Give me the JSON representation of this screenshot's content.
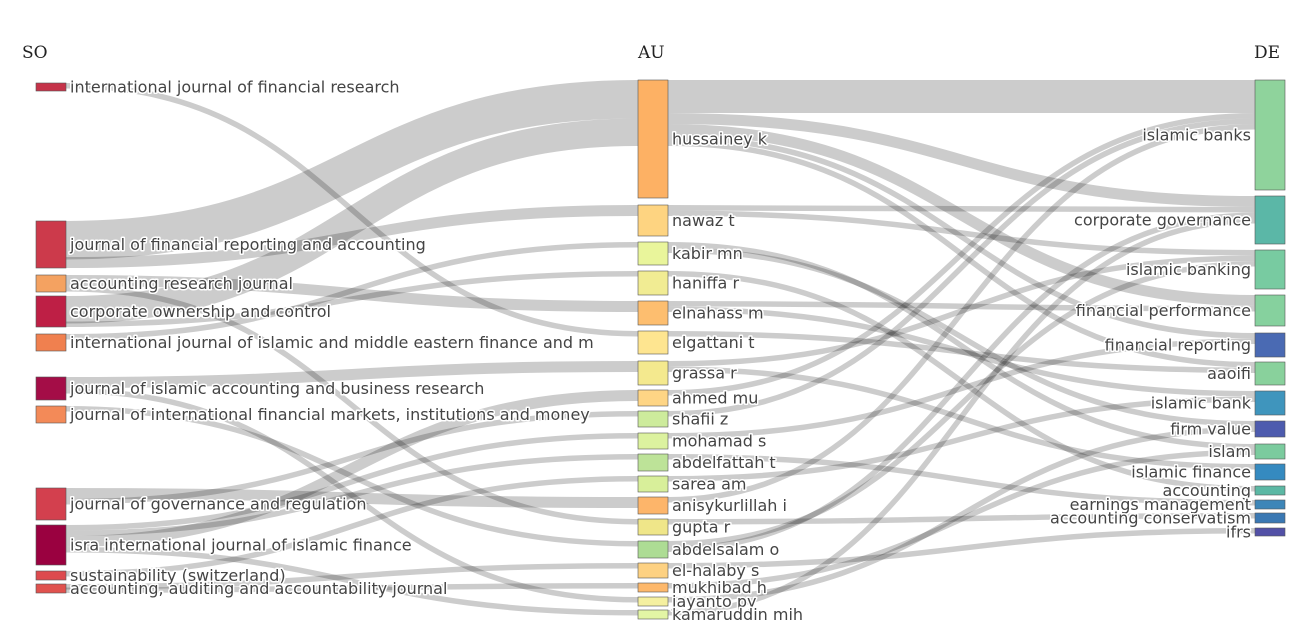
{
  "columns": [
    {
      "key": "so",
      "title": "SO"
    },
    {
      "key": "au",
      "title": "AU"
    },
    {
      "key": "de",
      "title": "DE"
    }
  ],
  "chart_data": {
    "type": "sankey",
    "nodes": {
      "so": [
        {
          "id": "ijfr",
          "label": "international journal of financial research",
          "color": "#c53349"
        },
        {
          "id": "jfra",
          "label": "journal of financial reporting and accounting",
          "color": "#cc3a4b"
        },
        {
          "id": "arj",
          "label": "accounting research journal",
          "color": "#f4a261"
        },
        {
          "id": "coc",
          "label": "corporate ownership and control",
          "color": "#be1f45"
        },
        {
          "id": "imefm",
          "label": "international journal of islamic and middle eastern finance and m",
          "color": "#f0804f"
        },
        {
          "id": "jiabr",
          "label": "journal of islamic accounting and business research",
          "color": "#a40d47"
        },
        {
          "id": "jifmim",
          "label": "journal of international financial markets, institutions and money",
          "color": "#f38a58"
        },
        {
          "id": "jgr",
          "label": "journal of governance and regulation",
          "color": "#d3404e"
        },
        {
          "id": "isra",
          "label": "isra international journal of islamic finance",
          "color": "#9a0140"
        },
        {
          "id": "sust",
          "label": "sustainability (switzerland)",
          "color": "#dd4a4e"
        },
        {
          "id": "aaaj",
          "label": "accounting, auditing and accountability journal",
          "color": "#e0524e"
        }
      ],
      "au": [
        {
          "id": "hussainey",
          "label": "hussainey k",
          "color": "#fdb164"
        },
        {
          "id": "nawaz",
          "label": "nawaz t",
          "color": "#fed481"
        },
        {
          "id": "kabir",
          "label": "kabir mn",
          "color": "#e9f59b"
        },
        {
          "id": "haniffa",
          "label": "haniffa r",
          "color": "#f1ec93"
        },
        {
          "id": "elnahass",
          "label": "elnahass m",
          "color": "#fdbe6f"
        },
        {
          "id": "elgattani",
          "label": "elgattani t",
          "color": "#fee590"
        },
        {
          "id": "grassa",
          "label": "grassa r",
          "color": "#f4e98e"
        },
        {
          "id": "ahmed",
          "label": "ahmed mu",
          "color": "#fed585"
        },
        {
          "id": "shafii",
          "label": "shafii z",
          "color": "#cdeb9c"
        },
        {
          "id": "mohamad",
          "label": "mohamad s",
          "color": "#dcf29f"
        },
        {
          "id": "abdelfattah",
          "label": "abdelfattah t",
          "color": "#bde398"
        },
        {
          "id": "sarea",
          "label": "sarea am",
          "color": "#d8ef9a"
        },
        {
          "id": "anisykurlillah",
          "label": "anisykurlillah i",
          "color": "#fdb56a"
        },
        {
          "id": "gupta",
          "label": "gupta r",
          "color": "#efe689"
        },
        {
          "id": "abdelsalam",
          "label": "abdelsalam o",
          "color": "#addc94"
        },
        {
          "id": "elhalaby",
          "label": "el-halaby s",
          "color": "#fdd182"
        },
        {
          "id": "mukhibad",
          "label": "mukhibad h",
          "color": "#fdb86b"
        },
        {
          "id": "jayanto",
          "label": "jayanto py",
          "color": "#f5f0a0"
        },
        {
          "id": "kamaruddin",
          "label": "kamaruddin mih",
          "color": "#e3f5a5"
        }
      ],
      "de": [
        {
          "id": "ib",
          "label": "islamic banks",
          "color": "#8fd39c"
        },
        {
          "id": "cg",
          "label": "corporate governance",
          "color": "#5bb7a7"
        },
        {
          "id": "ibanking",
          "label": "islamic banking",
          "color": "#78cba1"
        },
        {
          "id": "fp",
          "label": "financial performance",
          "color": "#86d19e"
        },
        {
          "id": "fr",
          "label": "financial reporting",
          "color": "#4a6ab3"
        },
        {
          "id": "aaoifi",
          "label": "aaoifi",
          "color": "#89d19c"
        },
        {
          "id": "ibank",
          "label": "islamic bank",
          "color": "#3f95bd"
        },
        {
          "id": "fv",
          "label": "firm value",
          "color": "#4d5bae"
        },
        {
          "id": "islam",
          "label": "islam",
          "color": "#7bcb9e"
        },
        {
          "id": "ifin",
          "label": "islamic finance",
          "color": "#358ac0"
        },
        {
          "id": "acc",
          "label": "accounting",
          "color": "#5cb8a4"
        },
        {
          "id": "em",
          "label": "earnings management",
          "color": "#3d86b8"
        },
        {
          "id": "ac",
          "label": "accounting conservatism",
          "color": "#3a78b3"
        },
        {
          "id": "ifrs",
          "label": "ifrs",
          "color": "#5250a6"
        }
      ]
    },
    "links_so_au": [
      [
        "jfra",
        "hussainey",
        7
      ],
      [
        "coc",
        "hussainey",
        5
      ],
      [
        "ijfr",
        "elgattani",
        1
      ],
      [
        "jfra",
        "nawaz",
        2
      ],
      [
        "arj",
        "elnahass",
        2
      ],
      [
        "coc",
        "haniffa",
        1
      ],
      [
        "imefm",
        "kabir",
        1
      ],
      [
        "jiabr",
        "grassa",
        2
      ],
      [
        "jifmim",
        "abdelsalam",
        1
      ],
      [
        "jgr",
        "anisykurlillah",
        2
      ],
      [
        "jgr",
        "shafii",
        1
      ],
      [
        "isra",
        "mohamad",
        1
      ],
      [
        "isra",
        "abdelfattah",
        1
      ],
      [
        "isra",
        "ahmed",
        2
      ],
      [
        "sust",
        "sarea",
        1
      ],
      [
        "aaaj",
        "elhalaby",
        1
      ],
      [
        "aaaj",
        "mukhibad",
        1
      ],
      [
        "arj",
        "gupta",
        1
      ],
      [
        "jiabr",
        "jayanto",
        1
      ],
      [
        "isra",
        "kamaruddin",
        1
      ]
    ],
    "links_au_de": [
      [
        "hussainey",
        "ib",
        6
      ],
      [
        "hussainey",
        "cg",
        2
      ],
      [
        "hussainey",
        "fp",
        2
      ],
      [
        "hussainey",
        "fr",
        1
      ],
      [
        "hussainey",
        "aaoifi",
        1
      ],
      [
        "nawaz",
        "cg",
        1
      ],
      [
        "nawaz",
        "ibanking",
        1
      ],
      [
        "kabir",
        "islam",
        1
      ],
      [
        "kabir",
        "fv",
        1
      ],
      [
        "haniffa",
        "acc",
        1
      ],
      [
        "elnahass",
        "fp",
        1
      ],
      [
        "elnahass",
        "ibank",
        1
      ],
      [
        "elgattani",
        "aaoifi",
        1
      ],
      [
        "grassa",
        "ibanking",
        1
      ],
      [
        "grassa",
        "ifin",
        1
      ],
      [
        "ahmed",
        "ib",
        1
      ],
      [
        "shafii",
        "ib",
        1
      ],
      [
        "mohamad",
        "fr",
        1
      ],
      [
        "abdelfattah",
        "em",
        1
      ],
      [
        "sarea",
        "ibank",
        1
      ],
      [
        "anisykurlillah",
        "ib",
        1
      ],
      [
        "gupta",
        "ac",
        1
      ],
      [
        "abdelsalam",
        "ibanking",
        1
      ],
      [
        "abdelsalam",
        "cg",
        1
      ],
      [
        "elhalaby",
        "ifrs",
        1
      ],
      [
        "mukhibad",
        "islam",
        1
      ],
      [
        "jayanto",
        "fv",
        1
      ],
      [
        "kamaruddin",
        "cg",
        1
      ]
    ]
  }
}
